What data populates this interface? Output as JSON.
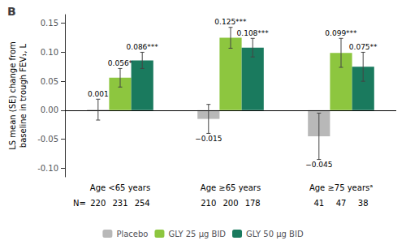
{
  "chart_data": {
    "type": "bar",
    "panel_label": "B",
    "ylabel": "LS mean (SE) change from\nbaseline in trough FEV₁, L",
    "categories": [
      "Age <65 years",
      "Age ≥65 years",
      "Age ≥75 yearsᵃ"
    ],
    "series": [
      {
        "name": "Placebo",
        "color": "#b8b8b8",
        "values": [
          0.001,
          -0.015,
          -0.045
        ],
        "error": [
          0.018,
          0.025,
          0.04
        ],
        "value_labels": [
          "0.001",
          "−0.015",
          "−0.045"
        ],
        "n": [
          220,
          210,
          41
        ]
      },
      {
        "name": "GLY 25 μg BID",
        "color": "#8dc63f",
        "values": [
          0.056,
          0.125,
          0.099
        ],
        "error": [
          0.016,
          0.018,
          0.025
        ],
        "value_labels": [
          "0.056*",
          "0.125***",
          "0.099***"
        ],
        "n": [
          231,
          200,
          47
        ]
      },
      {
        "name": "GLY 50 μg BID",
        "color": "#1a7a5e",
        "values": [
          0.086,
          0.108,
          0.075
        ],
        "error": [
          0.014,
          0.016,
          0.025
        ],
        "value_labels": [
          "0.086***",
          "0.108***",
          "0.075**"
        ],
        "n": [
          254,
          178,
          38
        ]
      }
    ],
    "n_label": "N=",
    "ylim": [
      -0.115,
      0.165
    ],
    "yticks": [
      {
        "value": -0.1,
        "label": "-0.10"
      },
      -0.05,
      {
        "value": 0,
        "label": "0.00"
      },
      0.05,
      {
        "value": 0.1,
        "label": "0.10"
      },
      0.15
    ],
    "grid": false,
    "legend": "bottom",
    "data_labels": true
  }
}
